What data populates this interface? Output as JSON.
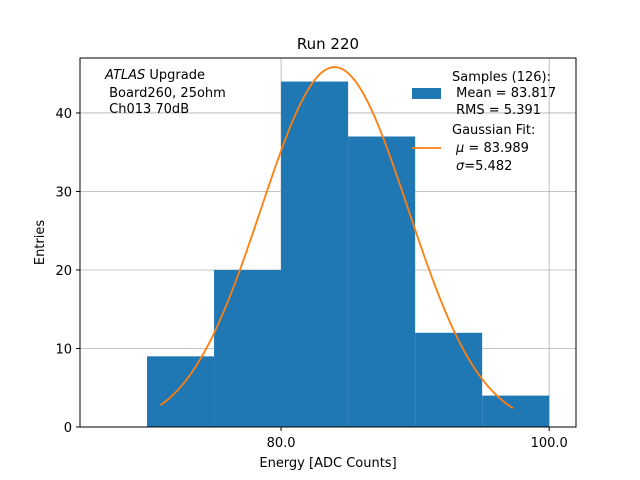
{
  "chart_data": {
    "type": "bar",
    "title": "Run 220",
    "xlabel": "Energy [ADC Counts]",
    "ylabel": "Entries",
    "xlim": [
      65,
      102
    ],
    "ylim": [
      0,
      47
    ],
    "x_ticks": [
      80.0,
      100.0
    ],
    "x_tick_labels": [
      "80.0",
      "100.0"
    ],
    "y_ticks": [
      0,
      10,
      20,
      30,
      40
    ],
    "y_tick_labels": [
      "0",
      "10",
      "20",
      "30",
      "40"
    ],
    "grid": true,
    "histogram": {
      "bin_edges": [
        70,
        75,
        80,
        85,
        90,
        95,
        100
      ],
      "counts": [
        9,
        20,
        44,
        37,
        12,
        4
      ],
      "color": "#1f77b4"
    },
    "fit": {
      "type": "gaussian",
      "mu": 83.989,
      "sigma": 5.482,
      "x_range": [
        71,
        97.3
      ],
      "color": "#ff7f0e"
    },
    "annotation": {
      "line1_italic": "ATLAS",
      "line1_rest": " Upgrade",
      "line2": " Board260, 25ohm",
      "line3": " Ch013 70dB"
    },
    "legend": {
      "placement": "top-right",
      "samples": {
        "line1": "Samples (126):",
        "line2": " Mean = 83.817",
        "line3": " RMS = 5.391"
      },
      "gauss": {
        "line1": "Gaussian Fit:",
        "line2_sym": "μ",
        "line2_rest": " = 83.989",
        "line3_sym": "σ",
        "line3_rest": "=5.482"
      }
    }
  }
}
